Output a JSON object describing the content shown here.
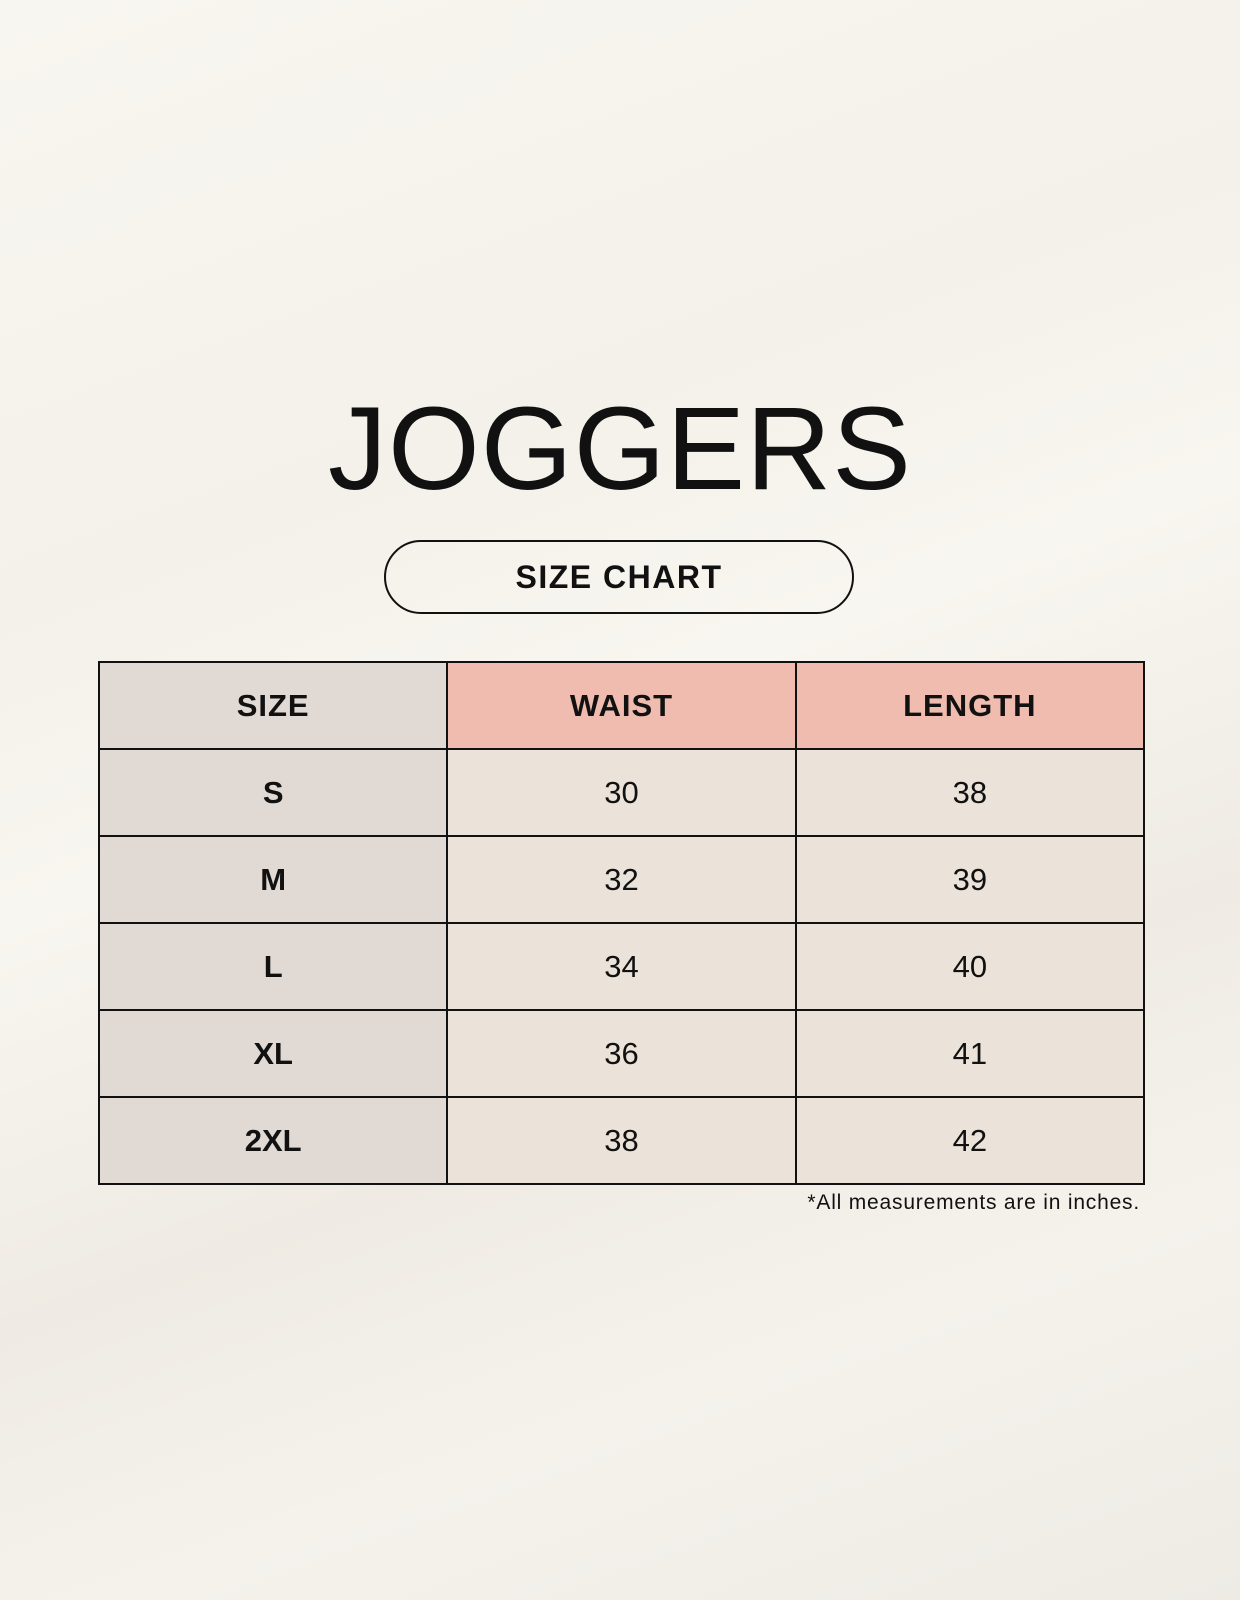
{
  "title": "JOGGERS",
  "subtitle": "SIZE CHART",
  "colors": {
    "header_accent": "#efbcaf",
    "size_column": "#e1d9d4",
    "value_cells": "#ebe3d9"
  },
  "table": {
    "headers": [
      "SIZE",
      "WAIST",
      "LENGTH"
    ],
    "rows": [
      {
        "size": "S",
        "waist": "30",
        "length": "38"
      },
      {
        "size": "M",
        "waist": "32",
        "length": "39"
      },
      {
        "size": "L",
        "waist": "34",
        "length": "40"
      },
      {
        "size": "XL",
        "waist": "36",
        "length": "41"
      },
      {
        "size": "2XL",
        "waist": "38",
        "length": "42"
      }
    ]
  },
  "footnote": "*All measurements are in inches."
}
